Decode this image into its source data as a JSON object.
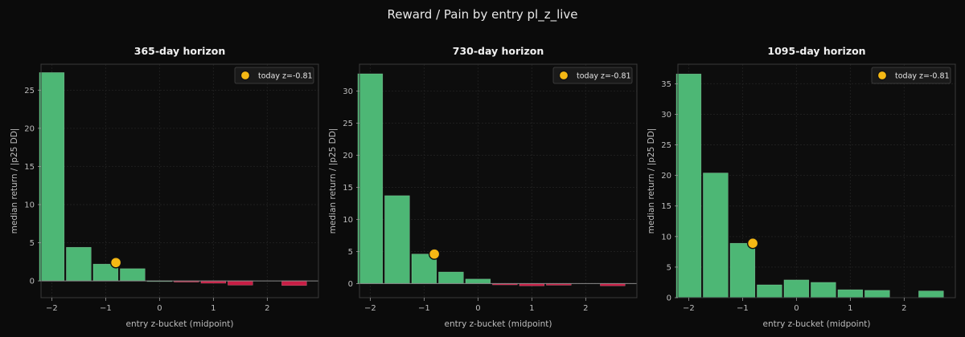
{
  "figure": {
    "title": "Reward / Pain by entry pl_z_live"
  },
  "colors": {
    "background": "#0b0b0b",
    "axes_bg": "#0d0d0d",
    "positive": "#4db775",
    "negative": "#c81e45",
    "marker": "#f5b814",
    "text": "#bdbdbd"
  },
  "chart_data": [
    {
      "type": "bar",
      "title": "365-day horizon",
      "xlabel": "entry z-bucket (midpoint)",
      "ylabel": "median return / |p25 DD|",
      "x": [
        -2.0,
        -1.5,
        -1.0,
        -0.5,
        0.0,
        0.5,
        1.0,
        1.5,
        2.0,
        2.5
      ],
      "values": [
        27.3,
        4.4,
        2.2,
        1.6,
        0.0,
        -0.15,
        -0.3,
        -0.55,
        null,
        -0.6
      ],
      "bar_width": 0.46,
      "xlim": [
        -2.2,
        2.95
      ],
      "ylim": [
        -2.2,
        28.4
      ],
      "xticks": [
        -2,
        -1,
        0,
        1,
        2
      ],
      "yticks": [
        0,
        5,
        10,
        15,
        20,
        25
      ],
      "today": {
        "x": -0.81,
        "y": 2.4,
        "label": "today z=-0.81"
      },
      "legend": "top-right",
      "grid": true
    },
    {
      "type": "bar",
      "title": "730-day horizon",
      "xlabel": "entry z-bucket (midpoint)",
      "ylabel": "median return / |p25 DD|",
      "x": [
        -2.0,
        -1.5,
        -1.0,
        -0.5,
        0.0,
        0.5,
        1.0,
        1.5,
        2.0,
        2.5
      ],
      "values": [
        32.7,
        13.7,
        4.6,
        1.8,
        0.7,
        -0.2,
        -0.35,
        -0.25,
        null,
        -0.35
      ],
      "bar_width": 0.46,
      "xlim": [
        -2.2,
        2.95
      ],
      "ylim": [
        -2.2,
        34.2
      ],
      "xticks": [
        -2,
        -1,
        0,
        1,
        2
      ],
      "yticks": [
        0,
        5,
        10,
        15,
        20,
        25,
        30
      ],
      "today": {
        "x": -0.81,
        "y": 4.6,
        "label": "today z=-0.81"
      },
      "legend": "top-right",
      "grid": true
    },
    {
      "type": "bar",
      "title": "1095-day horizon",
      "xlabel": "entry z-bucket (midpoint)",
      "ylabel": "median return / |p25 DD|",
      "x": [
        -2.0,
        -1.5,
        -1.0,
        -0.5,
        0.0,
        0.5,
        1.0,
        1.5,
        2.0,
        2.5
      ],
      "values": [
        36.6,
        20.4,
        8.9,
        2.1,
        2.9,
        2.5,
        1.3,
        1.2,
        null,
        1.1
      ],
      "bar_width": 0.46,
      "xlim": [
        -2.2,
        2.95
      ],
      "ylim": [
        0,
        38.2
      ],
      "xticks": [
        -2,
        -1,
        0,
        1,
        2
      ],
      "yticks": [
        0,
        5,
        10,
        15,
        20,
        25,
        30,
        35
      ],
      "today": {
        "x": -0.81,
        "y": 8.9,
        "label": "today z=-0.81"
      },
      "legend": "top-right",
      "grid": true
    }
  ]
}
